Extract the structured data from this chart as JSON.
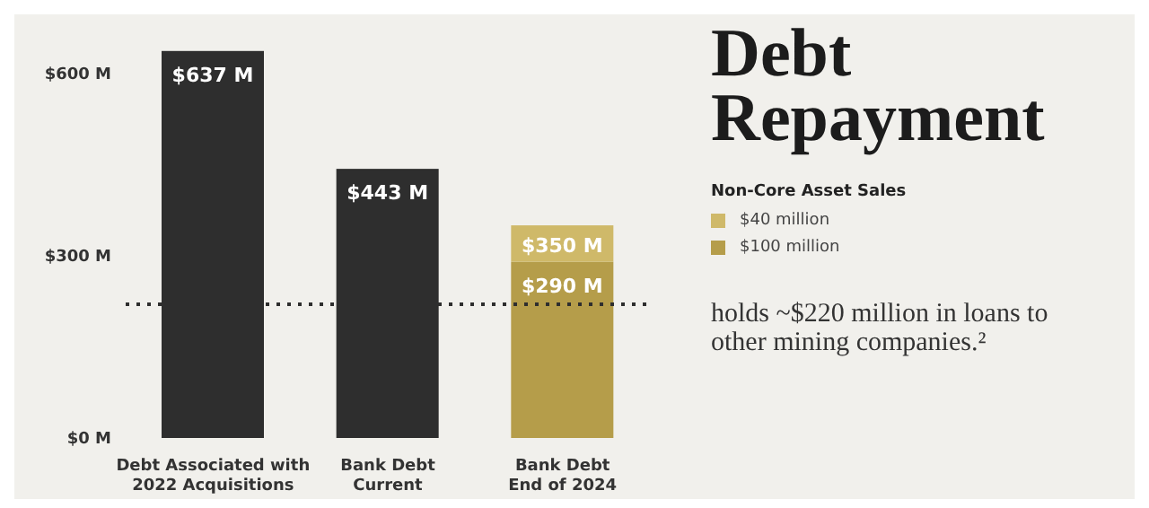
{
  "chart_data": {
    "type": "bar",
    "title": "Debt Repayment",
    "legend_title": "Non-Core Asset Sales",
    "categories": [
      "Debt Associated with\n2022 Acquisitions",
      "Bank Debt\nCurrent",
      "Bank Debt\nEnd of 2024"
    ],
    "stacked": true,
    "totals": [
      null,
      null,
      "$350 M"
    ],
    "series": [
      {
        "color": "#2e2e2e",
        "values": [
          637,
          443,
          null
        ],
        "value_labels": [
          "$637 M",
          "$443 M",
          null
        ]
      },
      {
        "name": "$100 million",
        "color": "#b59d4a",
        "values": [
          null,
          null,
          290
        ],
        "value_labels": [
          null,
          null,
          "$290 M"
        ]
      },
      {
        "name": "$40 million",
        "color": "#cfb969",
        "values": [
          null,
          null,
          60
        ]
      }
    ],
    "ylim": [
      0,
      650
    ],
    "yticks": [
      {
        "value": 0,
        "label": "$0 M"
      },
      {
        "value": 300,
        "label": "$300 M"
      },
      {
        "value": 600,
        "label": "$600 M"
      }
    ],
    "grid": false,
    "legend": "right",
    "ref_lines": [
      {
        "axis": "y",
        "value": 220,
        "label": "holds ~$220 million in loans to other mining companies.²",
        "color": "#2e2e2e",
        "line_style": "dotted"
      }
    ]
  }
}
